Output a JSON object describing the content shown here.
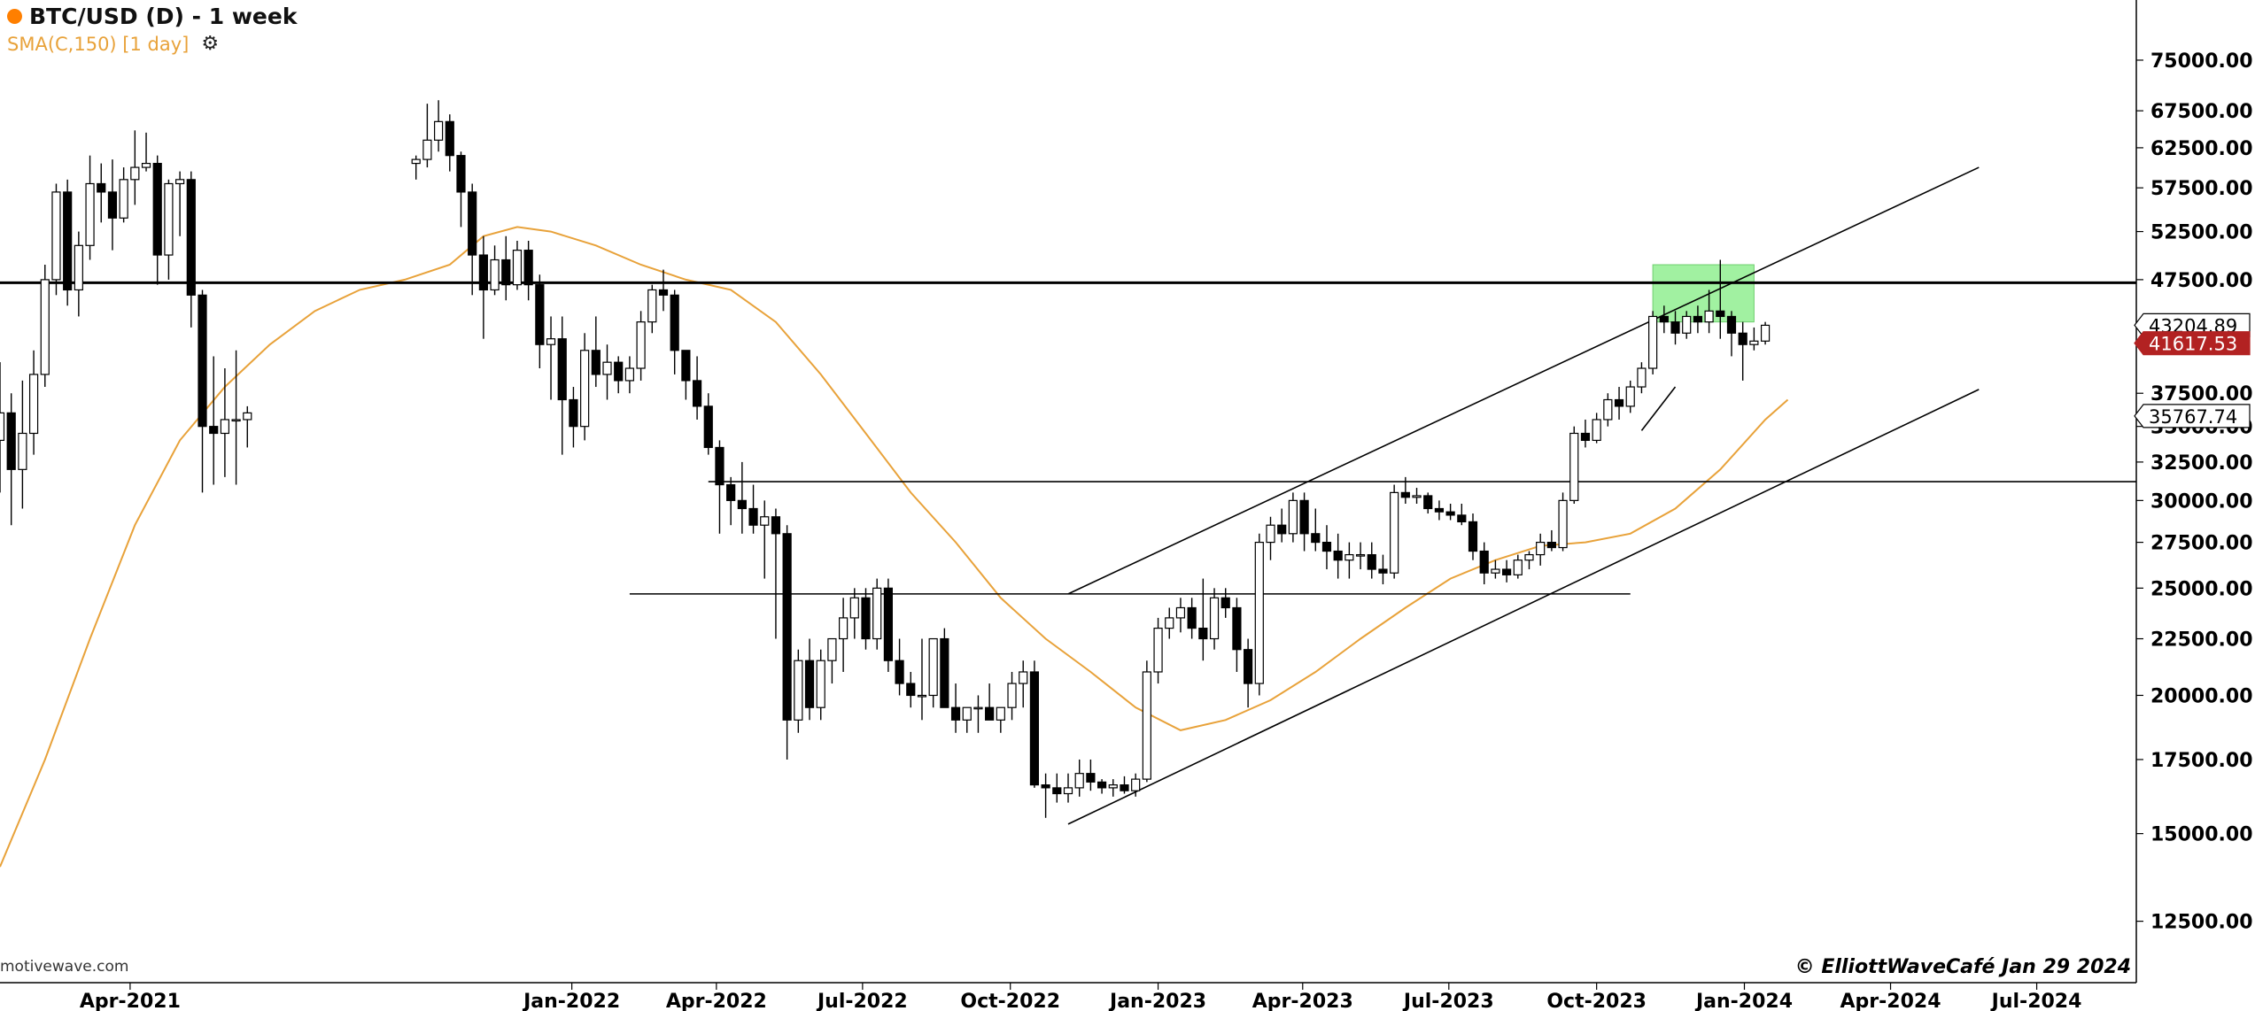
{
  "header": {
    "title": "BTC/USD (D) - 1 week",
    "indicator_label": "SMA(C,150) [1 day]",
    "indicator_color": "#e8a23a",
    "symbol_dot_color": "#ff7f00",
    "settings_icon": "gear-icon"
  },
  "footer": {
    "watermark": "motivewave.com",
    "copyright": "© ElliottWaveCafé Jan 29 2024"
  },
  "chart_data": {
    "type": "candlestick",
    "scale": "log",
    "y_ticks": [
      "75000.00",
      "67500.00",
      "62500.00",
      "57500.00",
      "52500.00",
      "47500.00",
      "37500.00",
      "35000.00",
      "32500.00",
      "30000.00",
      "27500.00",
      "25000.00",
      "22500.00",
      "20000.00",
      "17500.00",
      "15000.00",
      "12500.00"
    ],
    "ylim": [
      11000,
      85000
    ],
    "xlim": [
      "2021-01-10",
      "2024-09-01"
    ],
    "x_ticks": [
      {
        "label": "Apr-2021",
        "date": "2021-04-01"
      },
      {
        "label": "Jan-2022",
        "date": "2022-01-01"
      },
      {
        "label": "Apr-2022",
        "date": "2022-04-01"
      },
      {
        "label": "Jul-2022",
        "date": "2022-07-01"
      },
      {
        "label": "Oct-2022",
        "date": "2022-10-01"
      },
      {
        "label": "Jan-2023",
        "date": "2023-01-01"
      },
      {
        "label": "Apr-2023",
        "date": "2023-04-01"
      },
      {
        "label": "Jul-2023",
        "date": "2023-07-01"
      },
      {
        "label": "Oct-2023",
        "date": "2023-10-01"
      },
      {
        "label": "Jan-2024",
        "date": "2024-01-01"
      },
      {
        "label": "Apr-2024",
        "date": "2024-04-01"
      },
      {
        "label": "Jul-2024",
        "date": "2024-07-01"
      }
    ],
    "price_labels": [
      {
        "text": "43204.89",
        "value": 43204.89,
        "style": "outline"
      },
      {
        "text": "41617.53",
        "value": 41617.53,
        "style": "red"
      },
      {
        "text": "35767.74",
        "value": 35767.74,
        "style": "outline"
      }
    ],
    "candles": [
      [
        "2021-01-10",
        34000,
        40000,
        30500,
        36000
      ],
      [
        "2021-01-17",
        36000,
        37500,
        28500,
        32000
      ],
      [
        "2021-01-24",
        32000,
        38500,
        29500,
        34500
      ],
      [
        "2021-01-31",
        34500,
        41000,
        33000,
        39000
      ],
      [
        "2021-02-07",
        39000,
        49000,
        38000,
        47500
      ],
      [
        "2021-02-14",
        47500,
        58000,
        46000,
        57000
      ],
      [
        "2021-02-21",
        57000,
        58500,
        45000,
        46500
      ],
      [
        "2021-02-28",
        46500,
        52500,
        44000,
        51000
      ],
      [
        "2021-03-07",
        51000,
        61500,
        49500,
        58000
      ],
      [
        "2021-03-14",
        58000,
        60500,
        53500,
        57000
      ],
      [
        "2021-03-21",
        57000,
        61000,
        50500,
        54000
      ],
      [
        "2021-03-28",
        54000,
        60000,
        53500,
        58500
      ],
      [
        "2021-04-04",
        58500,
        64800,
        55500,
        60000
      ],
      [
        "2021-04-11",
        60000,
        64500,
        59500,
        60500
      ],
      [
        "2021-04-18",
        60500,
        61500,
        47000,
        50000
      ],
      [
        "2021-04-25",
        50000,
        58500,
        47500,
        58000
      ],
      [
        "2021-05-02",
        58000,
        59500,
        52000,
        58500
      ],
      [
        "2021-05-09",
        58500,
        59500,
        43000,
        46000
      ],
      [
        "2021-05-16",
        46000,
        46500,
        30500,
        35000
      ],
      [
        "2021-05-23",
        35000,
        40500,
        31000,
        34500
      ],
      [
        "2021-05-30",
        34500,
        39500,
        31500,
        35500
      ],
      [
        "2021-06-06",
        35500,
        41000,
        31000,
        35500
      ],
      [
        "2021-06-13",
        35500,
        36500,
        33500,
        36000
      ],
      [
        "2021-09-26",
        60500,
        61500,
        58500,
        61000
      ],
      [
        "2021-10-03",
        61000,
        68500,
        60000,
        63500
      ],
      [
        "2021-10-10",
        63500,
        69000,
        62000,
        66000
      ],
      [
        "2021-10-17",
        66000,
        67000,
        59500,
        61500
      ],
      [
        "2021-10-24",
        61500,
        62000,
        53000,
        57000
      ],
      [
        "2021-10-31",
        57000,
        58000,
        46000,
        50000
      ],
      [
        "2021-11-07",
        50000,
        52000,
        42000,
        46500
      ],
      [
        "2021-11-14",
        46500,
        51000,
        46000,
        49500
      ],
      [
        "2021-11-21",
        49500,
        52000,
        45500,
        47000
      ],
      [
        "2021-11-28",
        47000,
        51500,
        46500,
        50500
      ],
      [
        "2021-12-05",
        50500,
        51500,
        45500,
        47000
      ],
      [
        "2021-12-12",
        47000,
        48000,
        39500,
        41500
      ],
      [
        "2021-12-19",
        41500,
        44000,
        37000,
        42000
      ],
      [
        "2021-12-26",
        42000,
        44000,
        33000,
        37000
      ],
      [
        "2022-01-02",
        37000,
        38000,
        33500,
        35000
      ],
      [
        "2022-01-09",
        35000,
        42500,
        34000,
        41000
      ],
      [
        "2022-01-16",
        41000,
        44000,
        38000,
        39000
      ],
      [
        "2022-01-23",
        39000,
        41500,
        37000,
        40000
      ],
      [
        "2022-01-30",
        40000,
        40500,
        37500,
        38500
      ],
      [
        "2022-02-06",
        38500,
        40500,
        37500,
        39500
      ],
      [
        "2022-02-13",
        39500,
        44500,
        38500,
        43500
      ],
      [
        "2022-02-20",
        43500,
        47000,
        42500,
        46500
      ],
      [
        "2022-02-27",
        46500,
        48500,
        44500,
        46000
      ],
      [
        "2022-03-06",
        46000,
        46500,
        39000,
        41000
      ],
      [
        "2022-03-13",
        41000,
        41000,
        37000,
        38500
      ],
      [
        "2022-03-20",
        38500,
        40500,
        35500,
        36500
      ],
      [
        "2022-03-27",
        36500,
        37500,
        33000,
        33500
      ],
      [
        "2022-04-03",
        33500,
        34000,
        28000,
        31000
      ],
      [
        "2022-04-10",
        31000,
        31500,
        28500,
        30000
      ],
      [
        "2022-04-17",
        30000,
        32500,
        28000,
        29500
      ],
      [
        "2022-04-24",
        29500,
        31000,
        28000,
        28500
      ],
      [
        "2022-05-01",
        28500,
        30000,
        25500,
        29000
      ],
      [
        "2022-05-08",
        29000,
        29500,
        22500,
        28000
      ],
      [
        "2022-05-15",
        28000,
        28500,
        17500,
        19000
      ],
      [
        "2022-05-22",
        19000,
        22000,
        18500,
        21500
      ],
      [
        "2022-05-29",
        21500,
        22500,
        19000,
        19500
      ],
      [
        "2022-06-05",
        19500,
        22000,
        19000,
        21500
      ],
      [
        "2022-06-12",
        21500,
        22500,
        20500,
        22500
      ],
      [
        "2022-06-19",
        22500,
        24500,
        21000,
        23500
      ],
      [
        "2022-06-26",
        23500,
        25000,
        22500,
        24500
      ],
      [
        "2022-07-03",
        24500,
        25000,
        22000,
        22500
      ],
      [
        "2022-07-10",
        22500,
        25500,
        22000,
        25000
      ],
      [
        "2022-07-17",
        25000,
        25500,
        21000,
        21500
      ],
      [
        "2022-07-24",
        21500,
        22500,
        20000,
        20500
      ],
      [
        "2022-07-31",
        20500,
        21000,
        19500,
        20000
      ],
      [
        "2022-08-07",
        20000,
        22500,
        19000,
        20000
      ],
      [
        "2022-08-14",
        20000,
        22500,
        19500,
        22500
      ],
      [
        "2022-08-21",
        22500,
        23000,
        19500,
        19500
      ],
      [
        "2022-08-28",
        19500,
        20500,
        18500,
        19000
      ],
      [
        "2022-09-04",
        19000,
        19500,
        18500,
        19500
      ],
      [
        "2022-09-11",
        19500,
        20000,
        18500,
        19500
      ],
      [
        "2022-09-18",
        19500,
        20500,
        19000,
        19000
      ],
      [
        "2022-09-25",
        19000,
        19500,
        18500,
        19500
      ],
      [
        "2022-10-02",
        19500,
        21000,
        19000,
        20500
      ],
      [
        "2022-10-09",
        20500,
        21500,
        19500,
        21000
      ],
      [
        "2022-10-16",
        21000,
        21500,
        16500,
        16600
      ],
      [
        "2022-10-23",
        16600,
        17000,
        15500,
        16500
      ],
      [
        "2022-10-30",
        16500,
        17000,
        16000,
        16300
      ],
      [
        "2022-11-06",
        16300,
        17000,
        16000,
        16500
      ],
      [
        "2022-11-13",
        16500,
        17500,
        16200,
        17000
      ],
      [
        "2022-11-20",
        17000,
        17500,
        16400,
        16700
      ],
      [
        "2022-11-27",
        16700,
        16800,
        16300,
        16500
      ],
      [
        "2022-12-04",
        16500,
        16800,
        16200,
        16600
      ],
      [
        "2022-12-11",
        16600,
        16900,
        16300,
        16400
      ],
      [
        "2022-12-18",
        16400,
        17000,
        16200,
        16800
      ],
      [
        "2022-12-25",
        16800,
        21500,
        16700,
        21000
      ],
      [
        "2023-01-01",
        21000,
        23500,
        20500,
        23000
      ],
      [
        "2023-01-08",
        23000,
        24000,
        22500,
        23500
      ],
      [
        "2023-01-15",
        23500,
        24500,
        22800,
        24000
      ],
      [
        "2023-01-22",
        24000,
        24500,
        22500,
        23000
      ],
      [
        "2023-01-29",
        23000,
        25500,
        21500,
        22500
      ],
      [
        "2023-02-05",
        22500,
        25000,
        22000,
        24500
      ],
      [
        "2023-02-12",
        24500,
        25000,
        23500,
        24000
      ],
      [
        "2023-02-19",
        24000,
        24500,
        21000,
        22000
      ],
      [
        "2023-02-26",
        22000,
        22500,
        19500,
        20500
      ],
      [
        "2023-03-05",
        20500,
        28000,
        20000,
        27500
      ],
      [
        "2023-03-12",
        27500,
        29000,
        26500,
        28500
      ],
      [
        "2023-03-19",
        28500,
        29500,
        27500,
        28000
      ],
      [
        "2023-03-26",
        28000,
        30500,
        27500,
        30000
      ],
      [
        "2023-04-02",
        30000,
        30500,
        27000,
        28000
      ],
      [
        "2023-04-09",
        28000,
        29500,
        27000,
        27500
      ],
      [
        "2023-04-16",
        27500,
        28500,
        26000,
        27000
      ],
      [
        "2023-04-23",
        27000,
        28000,
        25500,
        26500
      ],
      [
        "2023-04-30",
        26500,
        27500,
        25500,
        26800
      ],
      [
        "2023-05-07",
        26800,
        27500,
        26000,
        26800
      ],
      [
        "2023-05-14",
        26800,
        27500,
        25500,
        26000
      ],
      [
        "2023-05-21",
        26000,
        26800,
        25200,
        25800
      ],
      [
        "2023-05-28",
        25800,
        31000,
        25500,
        30500
      ],
      [
        "2023-06-04",
        30500,
        31500,
        29800,
        30200
      ],
      [
        "2023-06-11",
        30200,
        30800,
        29800,
        30300
      ],
      [
        "2023-06-18",
        30300,
        30500,
        29200,
        29500
      ],
      [
        "2023-06-25",
        29500,
        30000,
        28800,
        29300
      ],
      [
        "2023-07-02",
        29300,
        29800,
        28800,
        29100
      ],
      [
        "2023-07-09",
        29100,
        29800,
        28500,
        28700
      ],
      [
        "2023-07-16",
        28700,
        29200,
        26500,
        27000
      ],
      [
        "2023-07-23",
        27000,
        27500,
        25200,
        25800
      ],
      [
        "2023-07-30",
        25800,
        26500,
        25500,
        26000
      ],
      [
        "2023-08-06",
        26000,
        26500,
        25300,
        25700
      ],
      [
        "2023-08-13",
        25700,
        26800,
        25500,
        26500
      ],
      [
        "2023-08-20",
        26500,
        27000,
        26000,
        26800
      ],
      [
        "2023-08-27",
        26800,
        28000,
        26200,
        27500
      ],
      [
        "2023-09-03",
        27500,
        28200,
        27000,
        27200
      ],
      [
        "2023-09-10",
        27200,
        30500,
        27000,
        30000
      ],
      [
        "2023-09-17",
        30000,
        35000,
        29800,
        34500
      ],
      [
        "2023-09-24",
        34500,
        35500,
        33500,
        34000
      ],
      [
        "2023-10-01",
        34000,
        36000,
        33800,
        35500
      ],
      [
        "2023-10-08",
        35500,
        37500,
        35000,
        37000
      ],
      [
        "2023-10-15",
        37000,
        38000,
        35500,
        36500
      ],
      [
        "2023-10-22",
        36500,
        38500,
        36000,
        38000
      ],
      [
        "2023-10-29",
        38000,
        40000,
        37500,
        39500
      ],
      [
        "2023-11-05",
        39500,
        44500,
        39000,
        44000
      ],
      [
        "2023-11-12",
        44000,
        45000,
        42500,
        43500
      ],
      [
        "2023-11-19",
        43500,
        44500,
        41500,
        42500
      ],
      [
        "2023-11-26",
        42500,
        44500,
        42000,
        44000
      ],
      [
        "2023-12-03",
        44000,
        45000,
        42500,
        43500
      ],
      [
        "2023-12-10",
        43500,
        46500,
        42500,
        44500
      ],
      [
        "2023-12-17",
        44500,
        49500,
        42000,
        44000
      ],
      [
        "2023-12-24",
        44000,
        44500,
        40500,
        42500
      ],
      [
        "2023-12-31",
        42500,
        43500,
        38500,
        41500
      ],
      [
        "2024-01-07",
        41500,
        43000,
        41000,
        41800
      ],
      [
        "2024-01-14",
        41800,
        43500,
        41500,
        43200
      ]
    ],
    "overlays": {
      "sma150": [
        [
          "2021-01-10",
          14000
        ],
        [
          "2021-02-07",
          17500
        ],
        [
          "2021-03-07",
          22500
        ],
        [
          "2021-04-04",
          28500
        ],
        [
          "2021-05-02",
          34000
        ],
        [
          "2021-05-30",
          38000
        ],
        [
          "2021-06-27",
          41500
        ],
        [
          "2021-07-25",
          44500
        ],
        [
          "2021-08-22",
          46500
        ],
        [
          "2021-09-19",
          47500
        ],
        [
          "2021-10-17",
          49000
        ],
        [
          "2021-11-07",
          52000
        ],
        [
          "2021-11-28",
          53000
        ],
        [
          "2021-12-19",
          52500
        ],
        [
          "2022-01-16",
          51000
        ],
        [
          "2022-02-13",
          49000
        ],
        [
          "2022-03-13",
          47500
        ],
        [
          "2022-04-10",
          46500
        ],
        [
          "2022-05-08",
          43500
        ],
        [
          "2022-06-05",
          39000
        ],
        [
          "2022-07-03",
          34500
        ],
        [
          "2022-07-31",
          30500
        ],
        [
          "2022-08-28",
          27500
        ],
        [
          "2022-09-25",
          24500
        ],
        [
          "2022-10-23",
          22500
        ],
        [
          "2022-11-20",
          21000
        ],
        [
          "2022-12-18",
          19500
        ],
        [
          "2023-01-15",
          18600
        ],
        [
          "2023-02-12",
          19000
        ],
        [
          "2023-03-12",
          19800
        ],
        [
          "2023-04-09",
          21000
        ],
        [
          "2023-05-07",
          22500
        ],
        [
          "2023-06-04",
          24000
        ],
        [
          "2023-07-02",
          25500
        ],
        [
          "2023-07-30",
          26500
        ],
        [
          "2023-08-27",
          27300
        ],
        [
          "2023-09-24",
          27500
        ],
        [
          "2023-10-22",
          28000
        ],
        [
          "2023-11-19",
          29500
        ],
        [
          "2023-12-17",
          32000
        ],
        [
          "2024-01-14",
          35500
        ],
        [
          "2024-01-28",
          37000
        ]
      ],
      "hlines": [
        {
          "value": 47200,
          "from": "2021-01-10",
          "to": "2024-09-01",
          "width": 3
        },
        {
          "value": 31200,
          "from": "2022-03-27",
          "to": "2024-09-01",
          "width": 1.6
        },
        {
          "value": 24700,
          "from": "2022-02-06",
          "to": "2023-10-22",
          "width": 1.6
        }
      ],
      "channel_lines": [
        [
          [
            "2022-11-06",
            15300
          ],
          [
            "2024-05-26",
            37800
          ]
        ],
        [
          [
            "2022-11-06",
            24700
          ],
          [
            "2024-05-26",
            60000
          ]
        ],
        [
          [
            "2023-10-29",
            34700
          ],
          [
            "2023-11-19",
            38000
          ]
        ]
      ],
      "zone": {
        "from": "2023-11-05",
        "to": "2024-01-07",
        "low": 43500,
        "high": 49000,
        "color": "#90ee90"
      }
    }
  }
}
